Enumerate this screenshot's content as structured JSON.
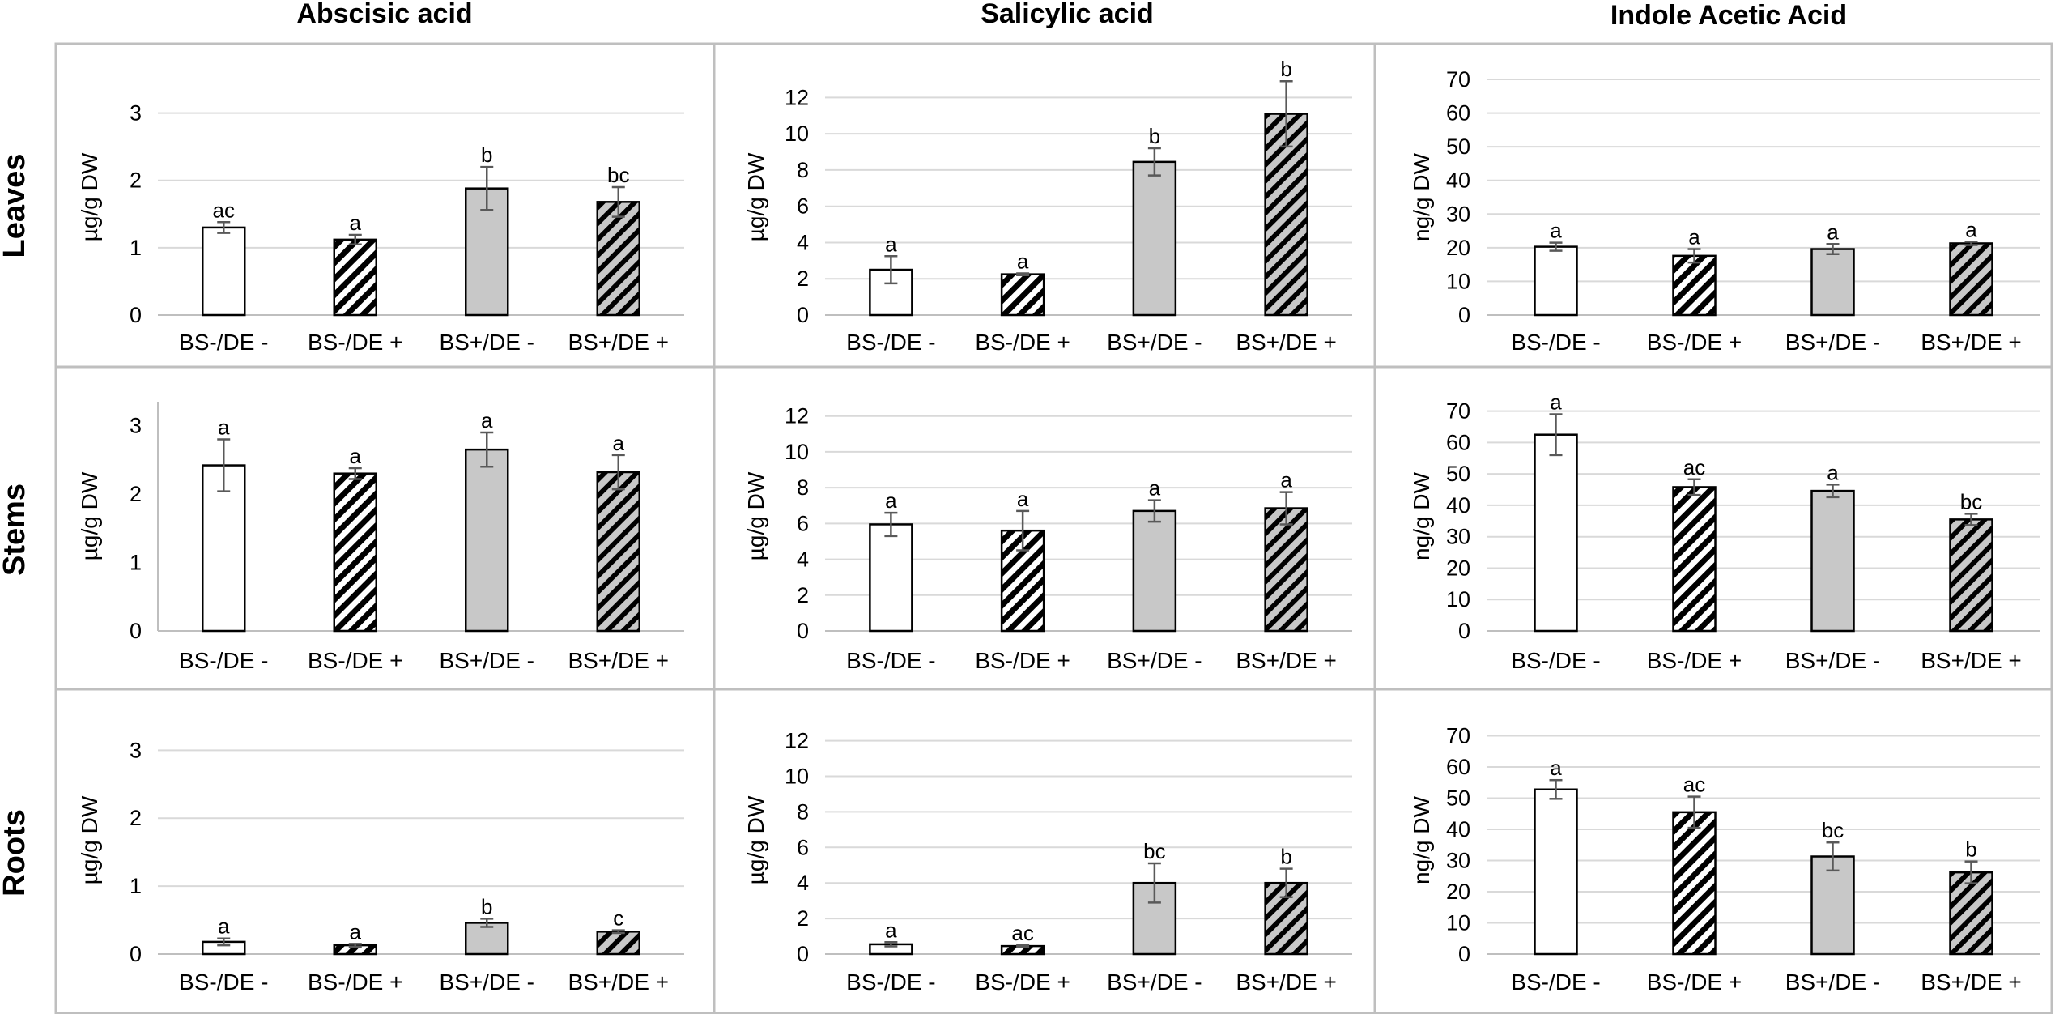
{
  "chart_data": {
    "type": "bar",
    "column_titles": [
      "Abscisic acid",
      "Salicylic acid",
      "Indole Acetic Acid"
    ],
    "row_titles": [
      "Leaves",
      "Stems",
      "Roots"
    ],
    "categories": [
      "BS-/DE -",
      "BS-/DE +",
      "BS+/DE -",
      "BS+/DE +"
    ],
    "bar_styles": [
      "white",
      "white-hatched",
      "gray",
      "gray-hatched"
    ],
    "colors": {
      "white": "#ffffff",
      "gray": "#c8c8c8",
      "hatch": "#000000"
    },
    "panels": [
      {
        "row": "Leaves",
        "column": "Abscisic acid",
        "ylabel": "µg/g DW",
        "yticks": [
          "0",
          "1",
          "2",
          "3"
        ],
        "ylim": [
          0,
          3.5
        ],
        "grid": true,
        "values": [
          1.3,
          1.12,
          1.88,
          1.68
        ],
        "errors": [
          0.08,
          0.07,
          0.32,
          0.22
        ],
        "letters": [
          "ac",
          "a",
          "b",
          "bc"
        ]
      },
      {
        "row": "Leaves",
        "column": "Salicylic acid",
        "ylabel": "µg/g DW",
        "yticks": [
          "0",
          "2",
          "4",
          "6",
          "8",
          "10",
          "12"
        ],
        "ylim": [
          0,
          13
        ],
        "grid": true,
        "values": [
          2.5,
          2.25,
          8.45,
          11.1
        ],
        "errors": [
          0.75,
          0.05,
          0.75,
          1.8
        ],
        "letters": [
          "a",
          "a",
          "b",
          "b"
        ]
      },
      {
        "row": "Leaves",
        "column": "Indole Acetic Acid",
        "ylabel": "ng/g DW",
        "yticks": [
          "0",
          "10",
          "20",
          "30",
          "40",
          "50",
          "60",
          "70"
        ],
        "ylim": [
          0,
          70
        ],
        "grid": true,
        "values": [
          20.3,
          17.6,
          19.6,
          21.3
        ],
        "errors": [
          1.2,
          2.0,
          1.5,
          0.5
        ],
        "letters": [
          "a",
          "a",
          "a",
          "a"
        ]
      },
      {
        "row": "Stems",
        "column": "Abscisic acid",
        "ylabel": "µg/g DW",
        "yticks": [
          "0",
          "1",
          "2",
          "3"
        ],
        "ylim": [
          0,
          3.35
        ],
        "grid": false,
        "values": [
          2.42,
          2.3,
          2.65,
          2.32
        ],
        "errors": [
          0.38,
          0.08,
          0.25,
          0.25
        ],
        "letters": [
          "a",
          "a",
          "a",
          "a"
        ]
      },
      {
        "row": "Stems",
        "column": "Salicylic acid",
        "ylabel": "µg/g DW",
        "yticks": [
          "0",
          "2",
          "4",
          "6",
          "8",
          "10",
          "12"
        ],
        "ylim": [
          0,
          12.8
        ],
        "grid": true,
        "values": [
          5.95,
          5.6,
          6.7,
          6.85
        ],
        "errors": [
          0.65,
          1.1,
          0.6,
          0.9
        ],
        "letters": [
          "a",
          "a",
          "a",
          "a"
        ]
      },
      {
        "row": "Stems",
        "column": "Indole Acetic Acid",
        "ylabel": "ng/g DW",
        "yticks": [
          "0",
          "10",
          "20",
          "30",
          "40",
          "50",
          "60",
          "70"
        ],
        "ylim": [
          0,
          73
        ],
        "grid": true,
        "values": [
          62.5,
          45.8,
          44.6,
          35.5
        ],
        "errors": [
          6.5,
          2.5,
          2.0,
          1.8
        ],
        "letters": [
          "a",
          "ac",
          "a",
          "bc"
        ]
      },
      {
        "row": "Roots",
        "column": "Abscisic acid",
        "ylabel": "µg/g DW",
        "yticks": [
          "0",
          "1",
          "2",
          "3"
        ],
        "ylim": [
          0,
          3.35
        ],
        "grid": true,
        "values": [
          0.18,
          0.13,
          0.46,
          0.33
        ],
        "errors": [
          0.05,
          0.02,
          0.06,
          0.02
        ],
        "letters": [
          "a",
          "a",
          "b",
          "c"
        ]
      },
      {
        "row": "Roots",
        "column": "Salicylic acid",
        "ylabel": "µg/g DW",
        "yticks": [
          "0",
          "2",
          "4",
          "6",
          "8",
          "10",
          "12"
        ],
        "ylim": [
          0,
          12.8
        ],
        "grid": true,
        "values": [
          0.55,
          0.45,
          4.0,
          4.0
        ],
        "errors": [
          0.12,
          0.05,
          1.1,
          0.8
        ],
        "letters": [
          "a",
          "ac",
          "bc",
          "b"
        ]
      },
      {
        "row": "Roots",
        "column": "Indole Acetic Acid",
        "ylabel": "ng/g DW",
        "yticks": [
          "0",
          "10",
          "20",
          "30",
          "40",
          "50",
          "60",
          "70"
        ],
        "ylim": [
          0,
          73
        ],
        "grid": true,
        "values": [
          52.8,
          45.5,
          31.3,
          26.2
        ],
        "errors": [
          3.0,
          5.0,
          4.5,
          3.5
        ],
        "letters": [
          "a",
          "ac",
          "bc",
          "b"
        ]
      }
    ]
  }
}
